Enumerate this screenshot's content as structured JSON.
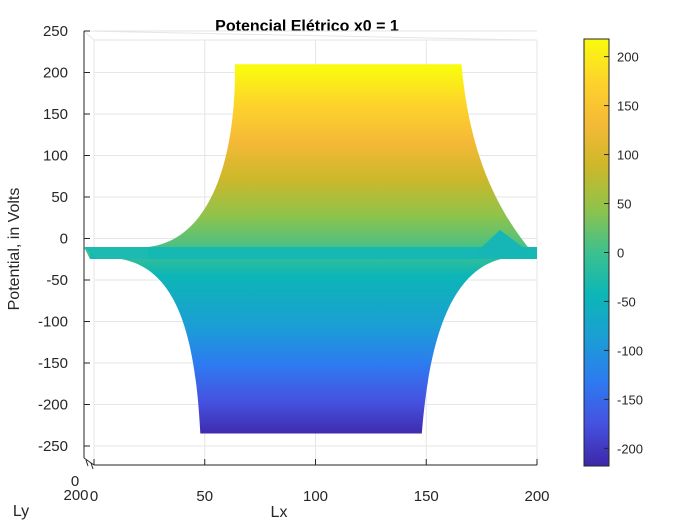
{
  "chart_data": {
    "type": "surface",
    "title": "Potencial Elétrico x0 = 1",
    "zlabel": "Potential, in Volts",
    "xlabel": "Lx",
    "ylabel": "Ly",
    "x_range": [
      0,
      200
    ],
    "y_range": [
      0,
      200
    ],
    "z_range": [
      -280,
      250
    ],
    "x_ticks": [
      0,
      50,
      100,
      150,
      200
    ],
    "y_ticks": [
      200,
      0
    ],
    "z_ticks": [
      250,
      200,
      150,
      100,
      50,
      0,
      -50,
      -100,
      -150,
      -200,
      -250
    ],
    "colormap": "parula",
    "colorbar": {
      "range": [
        -218,
        218
      ],
      "ticks": [
        200,
        150,
        100,
        50,
        0,
        -50,
        -100,
        -150,
        -200
      ]
    },
    "surface_profile": {
      "top_plateau_x": [
        65,
        165
      ],
      "top_plateau_z": 210,
      "bottom_plateau_x": [
        48,
        148
      ],
      "bottom_plateau_z": -235,
      "edge_z": -10
    },
    "grid": true
  }
}
